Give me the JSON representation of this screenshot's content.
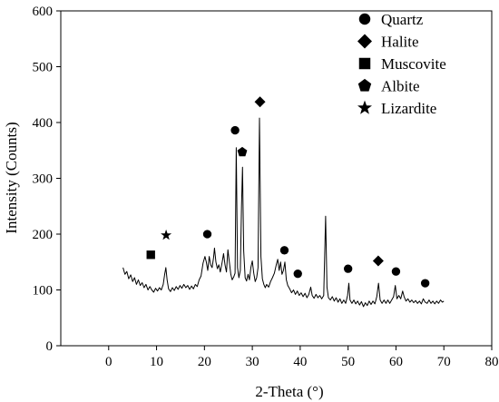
{
  "chart_data": {
    "type": "line",
    "title": "",
    "xlabel": "2-Theta (°)",
    "ylabel": "Intensity (Counts)",
    "xlim": [
      -10,
      80
    ],
    "ylim": [
      0,
      600
    ],
    "x_ticks": [
      0,
      10,
      20,
      30,
      40,
      50,
      60,
      70,
      80
    ],
    "y_ticks": [
      0,
      100,
      200,
      300,
      400,
      500,
      600
    ],
    "grid": false,
    "legend_position": "top-right",
    "series": [
      {
        "color": "#000000",
        "points": [
          [
            3.0,
            140
          ],
          [
            3.4,
            128
          ],
          [
            3.8,
            133
          ],
          [
            4.2,
            120
          ],
          [
            4.6,
            127
          ],
          [
            5.0,
            115
          ],
          [
            5.4,
            122
          ],
          [
            5.8,
            110
          ],
          [
            6.2,
            118
          ],
          [
            6.6,
            108
          ],
          [
            7.0,
            113
          ],
          [
            7.4,
            104
          ],
          [
            7.8,
            110
          ],
          [
            8.2,
            100
          ],
          [
            8.6,
            106
          ],
          [
            9.0,
            100
          ],
          [
            9.4,
            96
          ],
          [
            9.8,
            103
          ],
          [
            10.2,
            98
          ],
          [
            10.6,
            104
          ],
          [
            11.0,
            100
          ],
          [
            11.4,
            110
          ],
          [
            11.7,
            128
          ],
          [
            11.95,
            140
          ],
          [
            12.2,
            118
          ],
          [
            12.5,
            102
          ],
          [
            12.9,
            97
          ],
          [
            13.3,
            104
          ],
          [
            13.7,
            99
          ],
          [
            14.1,
            106
          ],
          [
            14.5,
            101
          ],
          [
            14.9,
            108
          ],
          [
            15.3,
            103
          ],
          [
            15.7,
            110
          ],
          [
            16.1,
            104
          ],
          [
            16.5,
            108
          ],
          [
            16.9,
            101
          ],
          [
            17.3,
            107
          ],
          [
            17.7,
            102
          ],
          [
            18.1,
            110
          ],
          [
            18.5,
            106
          ],
          [
            18.9,
            118
          ],
          [
            19.3,
            125
          ],
          [
            19.7,
            148
          ],
          [
            20.1,
            160
          ],
          [
            20.4,
            150
          ],
          [
            20.7,
            135
          ],
          [
            21.0,
            160
          ],
          [
            21.3,
            145
          ],
          [
            21.6,
            140
          ],
          [
            21.9,
            158
          ],
          [
            22.1,
            175
          ],
          [
            22.4,
            150
          ],
          [
            22.7,
            138
          ],
          [
            23.0,
            145
          ],
          [
            23.3,
            132
          ],
          [
            23.7,
            150
          ],
          [
            24.0,
            165
          ],
          [
            24.3,
            145
          ],
          [
            24.6,
            132
          ],
          [
            24.9,
            172
          ],
          [
            25.2,
            150
          ],
          [
            25.5,
            128
          ],
          [
            25.8,
            118
          ],
          [
            26.1,
            123
          ],
          [
            26.4,
            130
          ],
          [
            26.65,
            355
          ],
          [
            26.9,
            140
          ],
          [
            27.2,
            122
          ],
          [
            27.5,
            135
          ],
          [
            27.75,
            250
          ],
          [
            27.95,
            320
          ],
          [
            28.2,
            170
          ],
          [
            28.5,
            122
          ],
          [
            28.8,
            116
          ],
          [
            29.1,
            128
          ],
          [
            29.4,
            118
          ],
          [
            29.7,
            140
          ],
          [
            30.0,
            152
          ],
          [
            30.3,
            130
          ],
          [
            30.6,
            115
          ],
          [
            30.9,
            122
          ],
          [
            31.2,
            140
          ],
          [
            31.5,
            408
          ],
          [
            31.8,
            160
          ],
          [
            32.1,
            120
          ],
          [
            32.4,
            110
          ],
          [
            32.7,
            104
          ],
          [
            33.0,
            110
          ],
          [
            33.4,
            105
          ],
          [
            33.8,
            115
          ],
          [
            34.2,
            122
          ],
          [
            34.6,
            130
          ],
          [
            35.0,
            145
          ],
          [
            35.3,
            155
          ],
          [
            35.6,
            135
          ],
          [
            35.9,
            150
          ],
          [
            36.2,
            128
          ],
          [
            36.5,
            135
          ],
          [
            36.8,
            150
          ],
          [
            37.1,
            118
          ],
          [
            37.4,
            108
          ],
          [
            37.8,
            102
          ],
          [
            38.2,
            95
          ],
          [
            38.6,
            100
          ],
          [
            39.0,
            92
          ],
          [
            39.4,
            98
          ],
          [
            39.8,
            90
          ],
          [
            40.2,
            95
          ],
          [
            40.6,
            88
          ],
          [
            41.0,
            94
          ],
          [
            41.4,
            86
          ],
          [
            41.8,
            92
          ],
          [
            42.2,
            105
          ],
          [
            42.5,
            90
          ],
          [
            42.9,
            85
          ],
          [
            43.3,
            92
          ],
          [
            43.7,
            86
          ],
          [
            44.1,
            90
          ],
          [
            44.5,
            84
          ],
          [
            44.9,
            90
          ],
          [
            45.3,
            232
          ],
          [
            45.6,
            105
          ],
          [
            45.9,
            86
          ],
          [
            46.3,
            82
          ],
          [
            46.7,
            88
          ],
          [
            47.1,
            80
          ],
          [
            47.5,
            86
          ],
          [
            47.9,
            78
          ],
          [
            48.3,
            84
          ],
          [
            48.7,
            76
          ],
          [
            49.1,
            82
          ],
          [
            49.5,
            76
          ],
          [
            49.9,
            90
          ],
          [
            50.15,
            112
          ],
          [
            50.4,
            82
          ],
          [
            50.8,
            76
          ],
          [
            51.2,
            82
          ],
          [
            51.6,
            75
          ],
          [
            52.0,
            80
          ],
          [
            52.4,
            73
          ],
          [
            52.8,
            79
          ],
          [
            53.2,
            70
          ],
          [
            53.6,
            77
          ],
          [
            54.0,
            72
          ],
          [
            54.4,
            80
          ],
          [
            54.8,
            74
          ],
          [
            55.2,
            80
          ],
          [
            55.6,
            75
          ],
          [
            56.0,
            88
          ],
          [
            56.35,
            112
          ],
          [
            56.7,
            82
          ],
          [
            57.1,
            76
          ],
          [
            57.5,
            82
          ],
          [
            57.9,
            76
          ],
          [
            58.3,
            82
          ],
          [
            58.7,
            76
          ],
          [
            59.1,
            82
          ],
          [
            59.5,
            88
          ],
          [
            59.85,
            108
          ],
          [
            60.2,
            84
          ],
          [
            60.6,
            90
          ],
          [
            61.0,
            84
          ],
          [
            61.4,
            98
          ],
          [
            61.7,
            88
          ],
          [
            62.1,
            80
          ],
          [
            62.5,
            84
          ],
          [
            62.9,
            78
          ],
          [
            63.3,
            82
          ],
          [
            63.7,
            77
          ],
          [
            64.1,
            81
          ],
          [
            64.5,
            76
          ],
          [
            64.9,
            80
          ],
          [
            65.3,
            75
          ],
          [
            65.7,
            84
          ],
          [
            66.1,
            78
          ],
          [
            66.5,
            76
          ],
          [
            66.9,
            82
          ],
          [
            67.3,
            76
          ],
          [
            67.7,
            80
          ],
          [
            68.1,
            75
          ],
          [
            68.5,
            80
          ],
          [
            68.9,
            76
          ],
          [
            69.3,
            82
          ],
          [
            69.7,
            78
          ],
          [
            70.0,
            80
          ]
        ]
      }
    ],
    "legend": [
      {
        "marker": "circle",
        "label": "Quartz"
      },
      {
        "marker": "diamond",
        "label": "Halite"
      },
      {
        "marker": "square",
        "label": "Muscovite"
      },
      {
        "marker": "pentagon",
        "label": "Albite"
      },
      {
        "marker": "star",
        "label": "Lizardite"
      }
    ],
    "annotations": [
      {
        "mineral": "Muscovite",
        "marker": "square",
        "x": 8.8,
        "y": 163
      },
      {
        "mineral": "Lizardite",
        "marker": "star",
        "x": 12.0,
        "y": 198
      },
      {
        "mineral": "Quartz",
        "marker": "circle",
        "x": 20.6,
        "y": 200
      },
      {
        "mineral": "Quartz",
        "marker": "circle",
        "x": 26.4,
        "y": 386
      },
      {
        "mineral": "Albite",
        "marker": "pentagon",
        "x": 27.9,
        "y": 347
      },
      {
        "mineral": "Halite",
        "marker": "diamond",
        "x": 31.6,
        "y": 437
      },
      {
        "mineral": "Quartz",
        "marker": "circle",
        "x": 36.7,
        "y": 171
      },
      {
        "mineral": "Quartz",
        "marker": "circle",
        "x": 39.5,
        "y": 129
      },
      {
        "mineral": "Quartz",
        "marker": "circle",
        "x": 50.0,
        "y": 138
      },
      {
        "mineral": "Halite",
        "marker": "diamond",
        "x": 56.3,
        "y": 152
      },
      {
        "mineral": "Quartz",
        "marker": "circle",
        "x": 60.0,
        "y": 133
      },
      {
        "mineral": "Quartz",
        "marker": "circle",
        "x": 66.1,
        "y": 112
      }
    ]
  }
}
